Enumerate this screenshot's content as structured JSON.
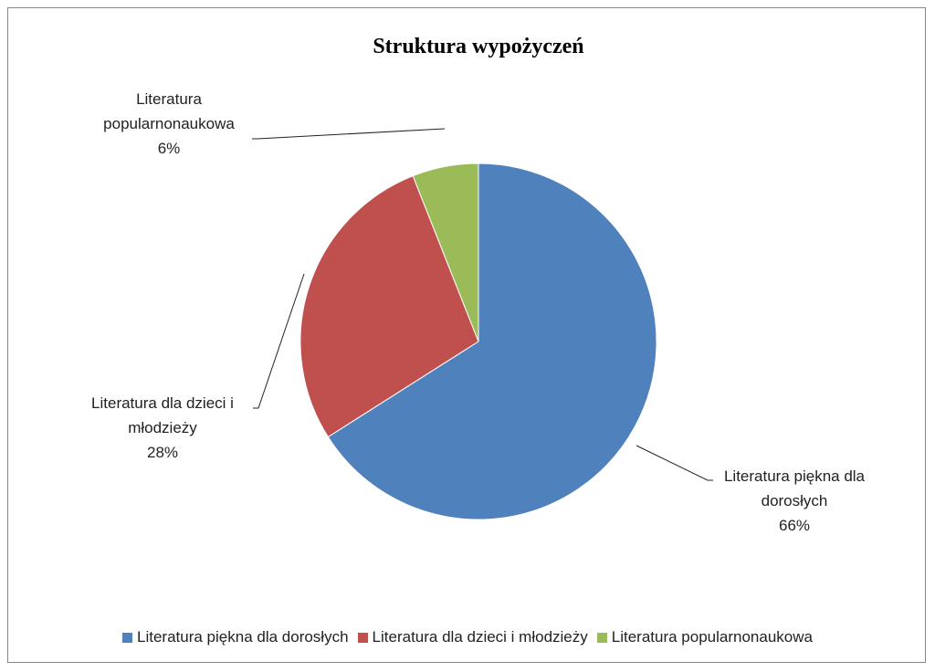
{
  "chart_data": {
    "type": "pie",
    "title": "Struktura wypożyczeń",
    "categories": [
      "Literatura piękna dla dorosłych",
      "Literatura dla dzieci i młodzieży",
      "Literatura popularnonaukowa"
    ],
    "values": [
      66,
      28,
      6
    ],
    "value_labels": [
      "66%",
      "28%",
      "6%"
    ],
    "colors": [
      "#4f81bd",
      "#c0504d",
      "#9bbb59"
    ],
    "legend": "bottom"
  }
}
